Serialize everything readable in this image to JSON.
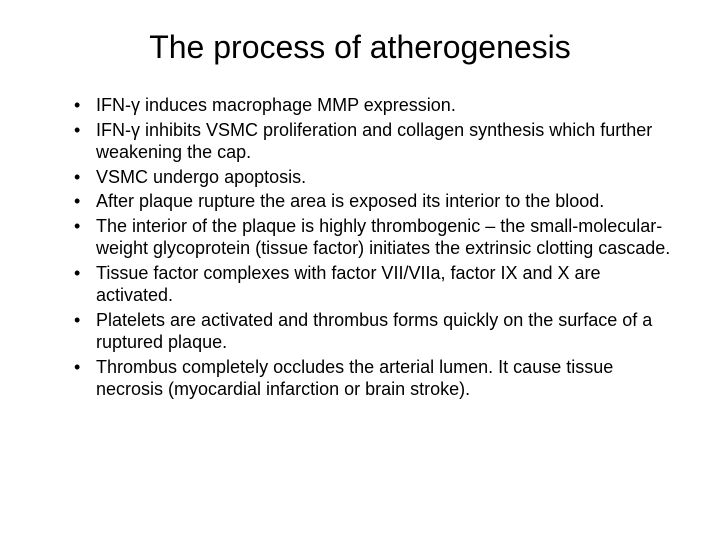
{
  "slide": {
    "title": "The process of atherogenesis",
    "title_fontsize": 32,
    "body_fontsize": 18,
    "background_color": "#ffffff",
    "text_color": "#000000",
    "font_family": "Arial",
    "bullets": [
      "IFN-γ induces macrophage MMP expression.",
      "IFN-γ inhibits VSMC proliferation and collagen synthesis which further weakening the cap.",
      "VSMC undergo apoptosis.",
      "After plaque rupture the area is exposed its interior to the blood.",
      "The interior of the plaque is highly thrombogenic – the small-molecular-weight glycoprotein (tissue factor) initiates the extrinsic clotting cascade.",
      "Tissue factor complexes with factor VII/VIIa, factor IX and X are activated.",
      "Platelets are activated and thrombus forms quickly on the surface of a ruptured plaque.",
      "Thrombus completely occludes the arterial lumen. It cause tissue necrosis (myocardial infarction or brain stroke)."
    ]
  }
}
